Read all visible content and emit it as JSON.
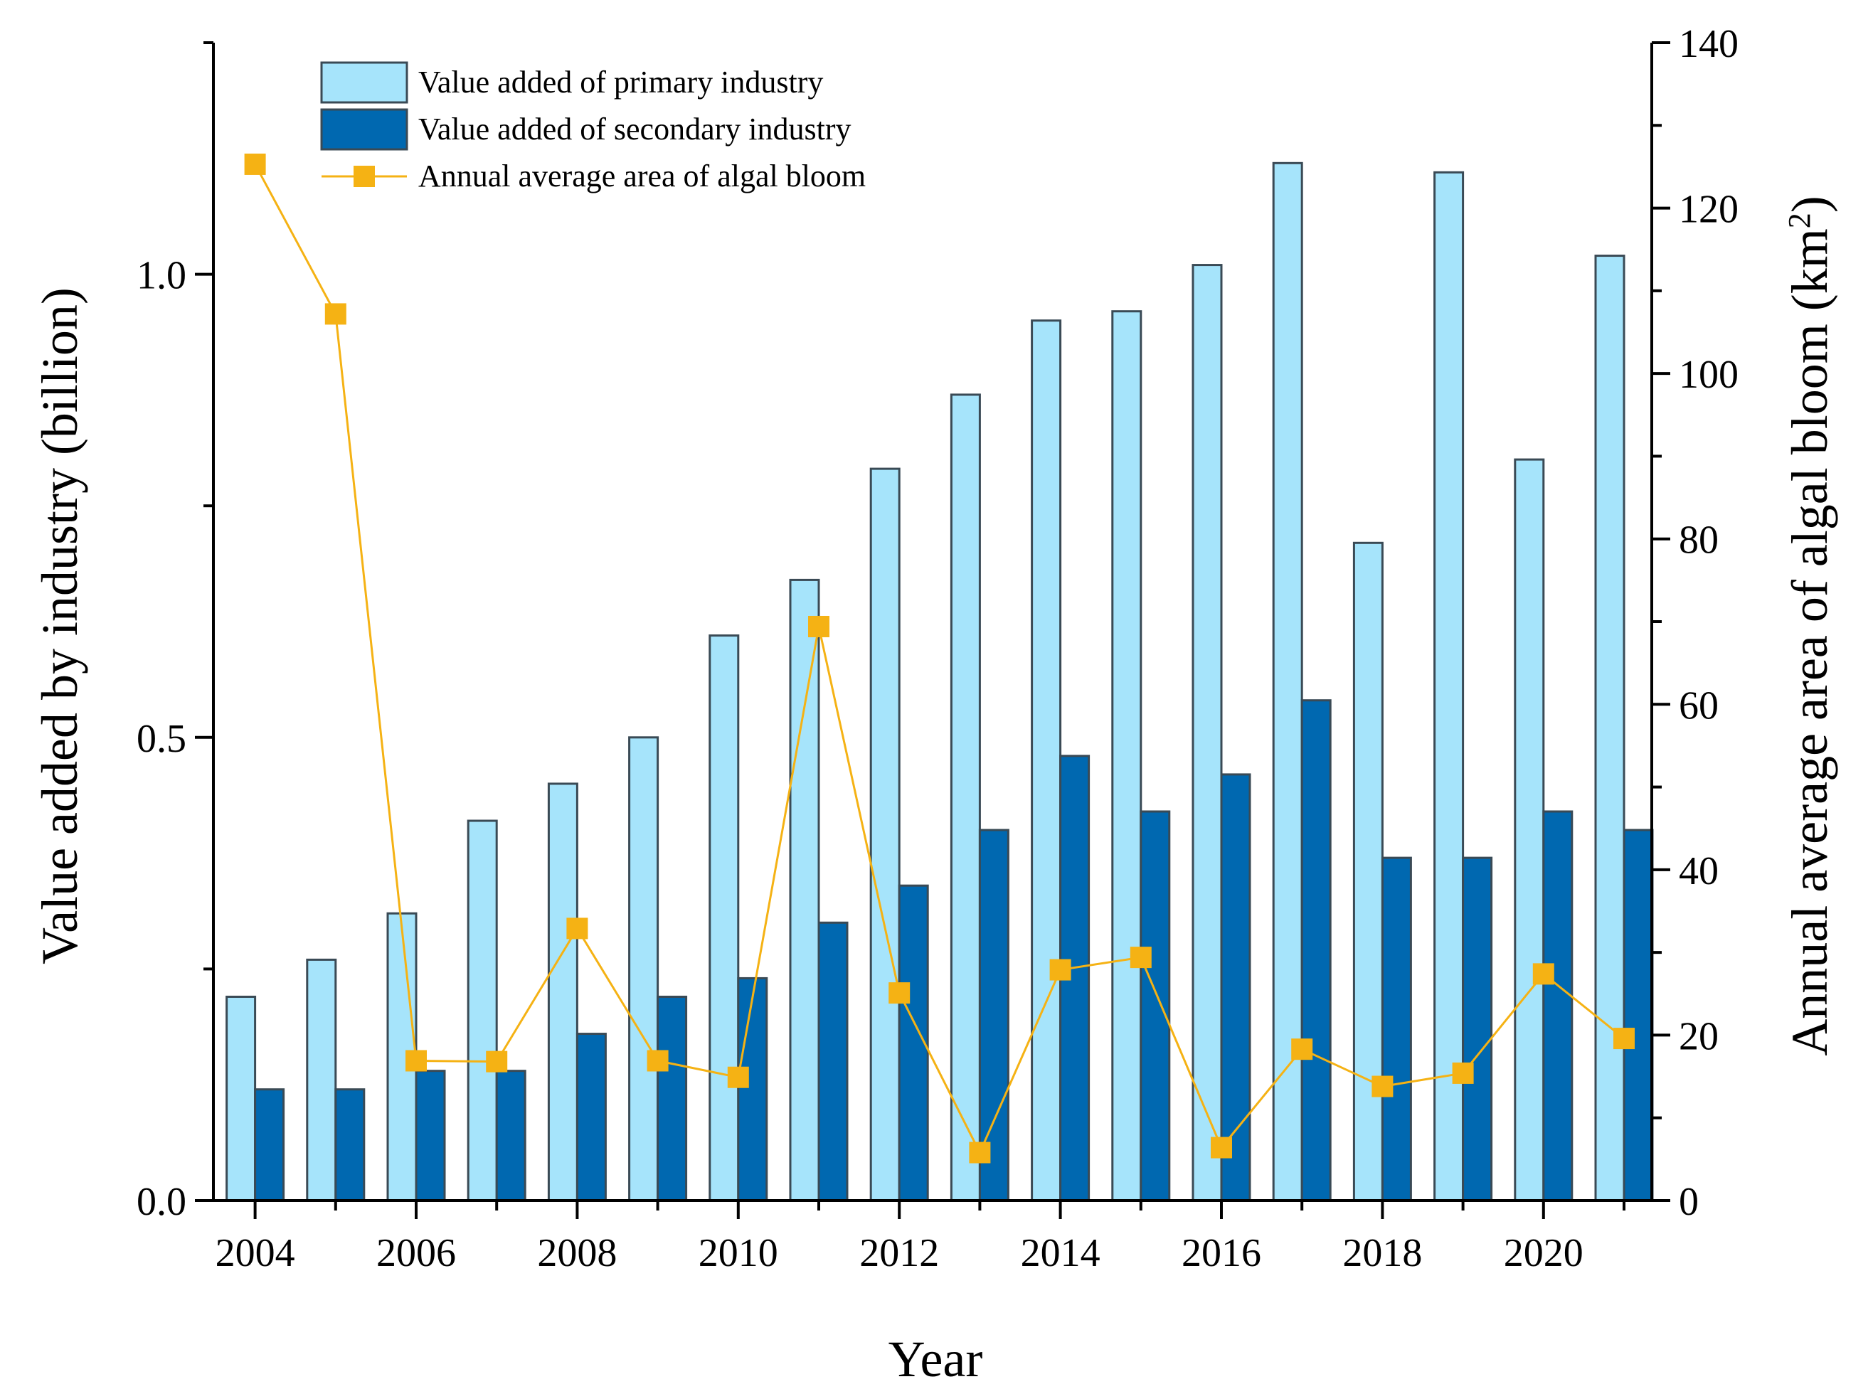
{
  "chart_data": {
    "type": "bar",
    "categories": [
      "2004",
      "2005",
      "2006",
      "2007",
      "2008",
      "2009",
      "2010",
      "2011",
      "2012",
      "2013",
      "2014",
      "2015",
      "2016",
      "2017",
      "2018",
      "2019",
      "2020",
      "2021"
    ],
    "series": [
      {
        "name": "Value added of primary industry",
        "axis": "left",
        "kind": "bar",
        "color": "#a6e4fb",
        "values": [
          0.22,
          0.26,
          0.31,
          0.41,
          0.45,
          0.5,
          0.61,
          0.67,
          0.79,
          0.87,
          0.95,
          0.96,
          1.01,
          1.12,
          0.71,
          1.11,
          0.8,
          1.02
        ]
      },
      {
        "name": "Value added of secondary industry",
        "axis": "left",
        "kind": "bar",
        "color": "#0068b0",
        "values": [
          0.12,
          0.12,
          0.14,
          0.14,
          0.18,
          0.22,
          0.24,
          0.3,
          0.34,
          0.4,
          0.48,
          0.42,
          0.46,
          0.54,
          0.37,
          0.37,
          0.42,
          0.4
        ]
      },
      {
        "name": "Annual average area of algal bloom",
        "axis": "right",
        "kind": "line",
        "color": "#f5b214",
        "values": [
          125.3,
          107.2,
          16.9,
          16.8,
          32.9,
          16.9,
          14.9,
          69.4,
          25.1,
          5.8,
          27.9,
          29.4,
          6.4,
          18.3,
          13.8,
          15.4,
          27.4,
          19.6
        ]
      }
    ],
    "title": "",
    "xlabel": "Year",
    "ylabel": "Value added by industry (billion)",
    "ylabel_right": "Annual average area of algal bloom (km",
    "ylabel_right_sup": "2",
    "ylabel_right_close": ")",
    "ylim": [
      0,
      1.25
    ],
    "ylim_right": [
      0,
      140
    ],
    "y_ticks": [
      "0.0",
      "0.5",
      "1.0"
    ],
    "y_right_ticks": [
      "0",
      "20",
      "40",
      "60",
      "80",
      "100",
      "120",
      "140"
    ],
    "x_tick_labels": [
      "2004",
      "2006",
      "2008",
      "2010",
      "2012",
      "2014",
      "2016",
      "2018",
      "2020"
    ],
    "legend": "top-left",
    "grid": false
  }
}
